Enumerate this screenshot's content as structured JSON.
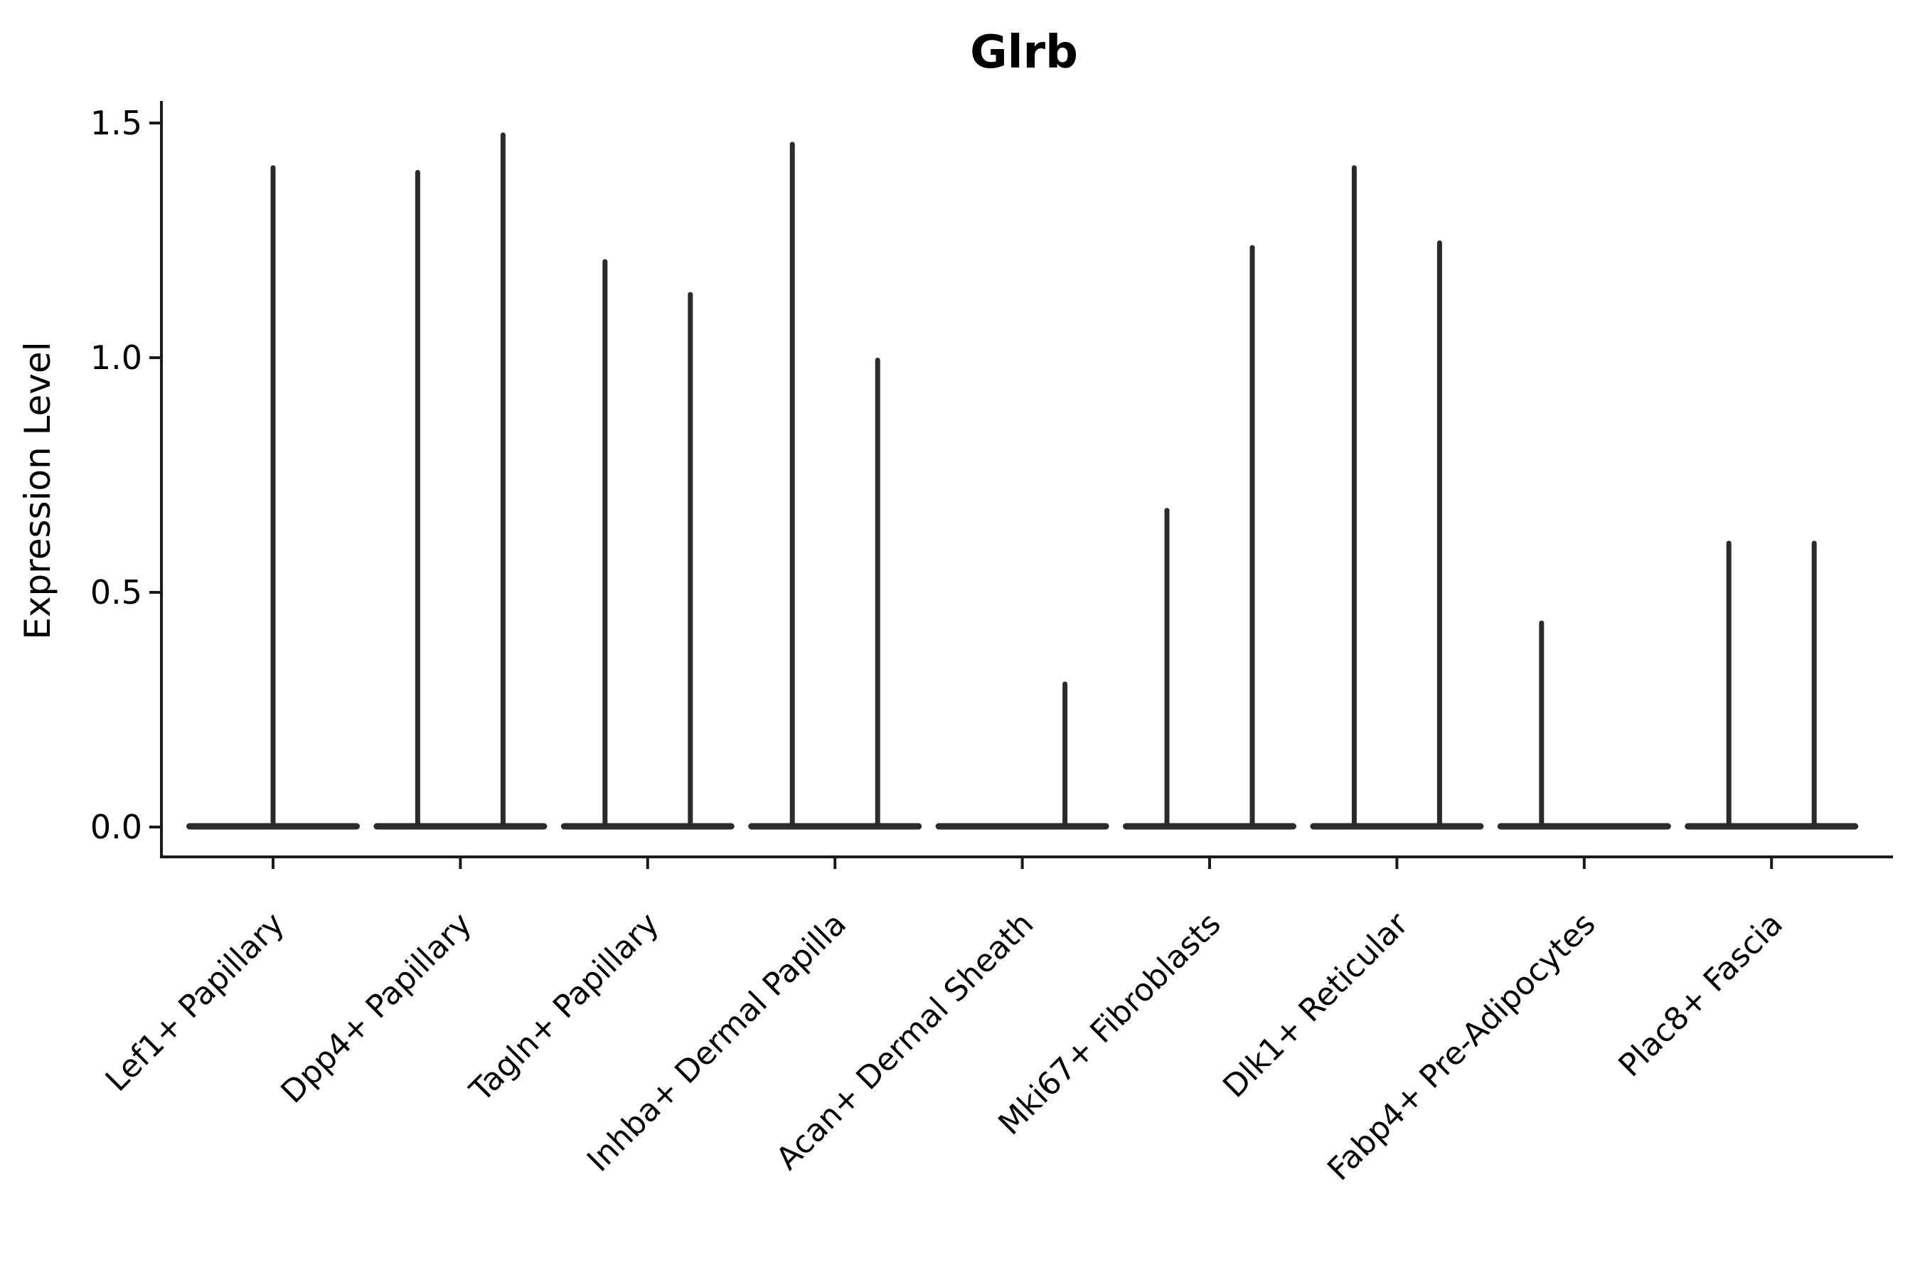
{
  "chart": {
    "title": "Glrb",
    "ylabel": "Expression Level"
  },
  "chart_data": {
    "type": "violin",
    "title": "Glrb",
    "xlabel": "",
    "ylabel": "Expression Level",
    "ylim": [
      -0.06,
      1.55
    ],
    "yticks": [
      0.0,
      0.5,
      1.0,
      1.5
    ],
    "ytick_labels": [
      "0.0",
      "0.5",
      "1.0",
      "1.5"
    ],
    "grid": "off",
    "legend": "none",
    "baseline_value": 0.0,
    "categories": [
      "Lef1+ Papillary",
      "Dpp4+ Papillary",
      "Tagln+ Papillary",
      "Inhba+ Dermal Papilla",
      "Acan+ Dermal Sheath",
      "Mki67+ Fibroblasts",
      "Dlk1+ Reticular",
      "Fabp4+ Pre-Adipocytes",
      "Plac8+ Fascia"
    ],
    "series": [
      {
        "category": "Lef1+ Papillary",
        "violins": [
          {
            "side": "center",
            "peak": 1.41
          }
        ]
      },
      {
        "category": "Dpp4+ Papillary",
        "violins": [
          {
            "side": "left",
            "peak": 1.4
          },
          {
            "side": "right",
            "peak": 1.48
          }
        ]
      },
      {
        "category": "Tagln+ Papillary",
        "violins": [
          {
            "side": "left",
            "peak": 1.21
          },
          {
            "side": "right",
            "peak": 1.14
          }
        ]
      },
      {
        "category": "Inhba+ Dermal Papilla",
        "violins": [
          {
            "side": "left",
            "peak": 1.46
          },
          {
            "side": "right",
            "peak": 1.0
          }
        ]
      },
      {
        "category": "Acan+ Dermal Sheath",
        "violins": [
          {
            "side": "right",
            "peak": 0.31
          }
        ]
      },
      {
        "category": "Mki67+ Fibroblasts",
        "violins": [
          {
            "side": "left",
            "peak": 0.68
          },
          {
            "side": "right",
            "peak": 1.24
          }
        ]
      },
      {
        "category": "Dlk1+ Reticular",
        "violins": [
          {
            "side": "left",
            "peak": 1.41
          },
          {
            "side": "right",
            "peak": 1.25
          }
        ]
      },
      {
        "category": "Fabp4+ Pre-Adipocytes",
        "violins": [
          {
            "side": "left",
            "peak": 0.44
          }
        ]
      },
      {
        "category": "Plac8+ Fascia",
        "violins": [
          {
            "side": "left",
            "peak": 0.61
          },
          {
            "side": "right",
            "peak": 0.61
          }
        ]
      }
    ],
    "colors": {
      "violin": "#2b2b2b",
      "axis": "#1a1a1a",
      "text": "#000000",
      "background": "#ffffff"
    }
  }
}
